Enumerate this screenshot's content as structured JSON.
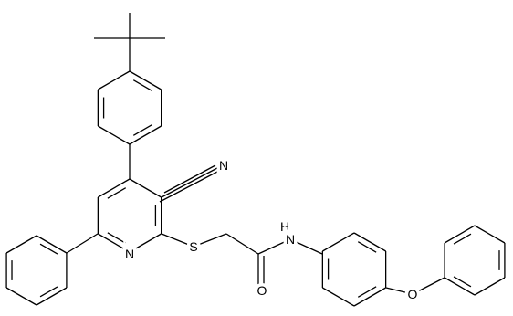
{
  "atoms": [
    {
      "label": "N"
    },
    {
      "label": "N"
    },
    {
      "label": "S"
    },
    {
      "label": "H"
    },
    {
      "label": "N"
    },
    {
      "label": "O"
    },
    {
      "label": "O"
    }
  ]
}
